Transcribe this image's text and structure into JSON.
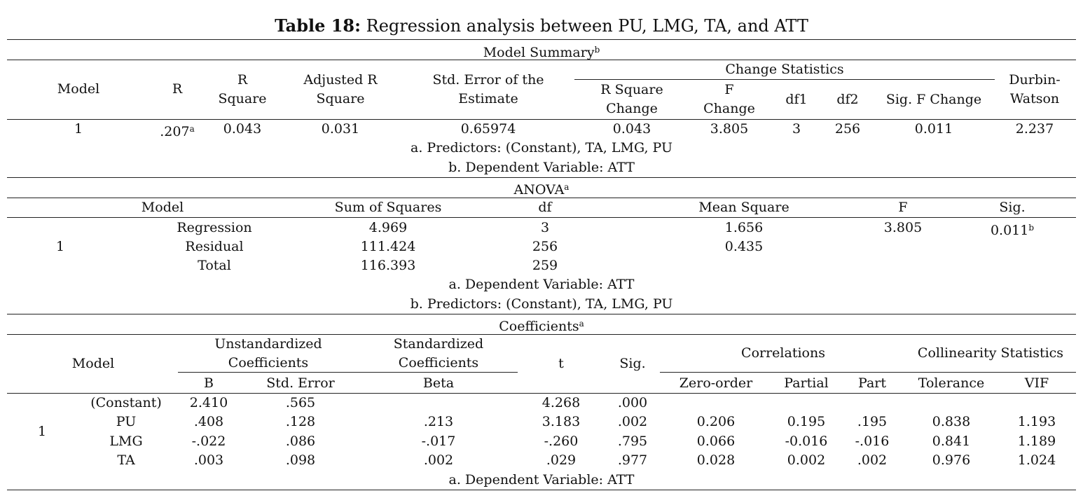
{
  "caption": {
    "label": "Table 18:",
    "text": " Regression analysis between PU, LMG, TA, and ATT"
  },
  "model_summary": {
    "title": "Model Summary",
    "title_sup": "b",
    "headers": {
      "model": "Model",
      "r": "R",
      "r_square_1": "R",
      "r_square_2": "Square",
      "adj_1": "Adjusted R",
      "adj_2": "Square",
      "std_1": "Std. Error of the",
      "std_2": "Estimate",
      "change_statistics": "Change Statistics",
      "rsq_change_1": "R Square",
      "rsq_change_2": "Change",
      "f_change_1": "F",
      "f_change_2": "Change",
      "df1": "df1",
      "df2": "df2",
      "sig_f_change": "Sig. F Change",
      "dw_1": "Durbin-",
      "dw_2": "Watson"
    },
    "row": {
      "model": "1",
      "r": ".207",
      "r_sup": "a",
      "r_square": "0.043",
      "adj_r_square": "0.031",
      "std_error": "0.65974",
      "rsq_change": "0.043",
      "f_change": "3.805",
      "df1": "3",
      "df2": "256",
      "sig_f_change": "0.011",
      "durbin_watson": "2.237"
    },
    "notes": [
      "a. Predictors: (Constant), TA, LMG, PU",
      "b. Dependent Variable: ATT"
    ]
  },
  "anova": {
    "title": "ANOVA",
    "title_sup": "a",
    "headers": {
      "model": "Model",
      "sum_sq": "Sum of Squares",
      "df": "df",
      "mean_sq": "Mean Square",
      "f": "F",
      "sig": "Sig."
    },
    "model_num": "1",
    "rows": [
      {
        "label": "Regression",
        "sum_sq": "4.969",
        "df": "3",
        "mean_sq": "1.656",
        "f": "3.805",
        "sig": "0.011",
        "sig_sup": "b"
      },
      {
        "label": "Residual",
        "sum_sq": "111.424",
        "df": "256",
        "mean_sq": "0.435"
      },
      {
        "label": "Total",
        "sum_sq": "116.393",
        "df": "259"
      }
    ],
    "notes": [
      "a. Dependent Variable: ATT",
      "b. Predictors: (Constant), TA, LMG, PU"
    ]
  },
  "coefficients": {
    "title": "Coefficients",
    "title_sup": "a",
    "headers": {
      "model": "Model",
      "unstd_1": "Unstandardized",
      "unstd_2": "Coefficients",
      "std_1": "Standardized",
      "std_2": "Coefficients",
      "t": "t",
      "sig": "Sig.",
      "correlations": "Correlations",
      "collinearity": "Collinearity Statistics",
      "b": "B",
      "std_error": "Std. Error",
      "beta": "Beta",
      "zero_order": "Zero-order",
      "partial": "Partial",
      "part": "Part",
      "tolerance": "Tolerance",
      "vif": "VIF"
    },
    "model_num": "1",
    "rows": [
      {
        "label": "(Constant)",
        "b": "2.410",
        "se": ".565",
        "beta": "",
        "t": "4.268",
        "sig": ".000",
        "zero": "",
        "partial": "",
        "part": "",
        "tol": "",
        "vif": ""
      },
      {
        "label": "PU",
        "b": ".408",
        "se": ".128",
        "beta": ".213",
        "t": "3.183",
        "sig": ".002",
        "zero": "0.206",
        "partial": "0.195",
        "part": ".195",
        "tol": "0.838",
        "vif": "1.193"
      },
      {
        "label": "LMG",
        "b": "-.022",
        "se": ".086",
        "beta": "-.017",
        "t": "-.260",
        "sig": ".795",
        "zero": "0.066",
        "partial": "-0.016",
        "part": "-.016",
        "tol": "0.841",
        "vif": "1.189"
      },
      {
        "label": "TA",
        "b": ".003",
        "se": ".098",
        "beta": ".002",
        "t": ".029",
        "sig": ".977",
        "zero": "0.028",
        "partial": "0.002",
        "part": ".002",
        "tol": "0.976",
        "vif": "1.024"
      }
    ],
    "notes": [
      "a. Dependent Variable: ATT"
    ]
  }
}
